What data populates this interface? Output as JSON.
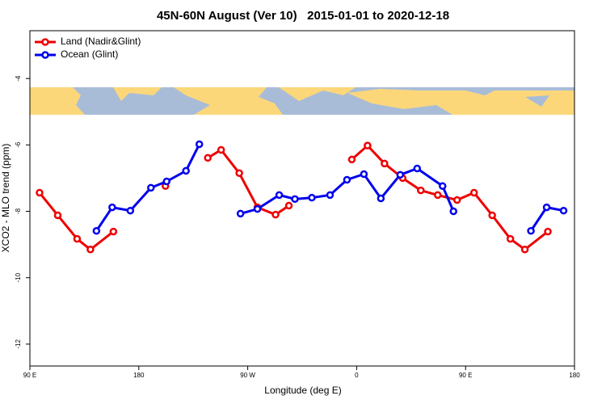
{
  "chart_data": {
    "type": "line",
    "title": "45N-60N August (Ver 10)   2015-01-01 to 2020-12-18",
    "x_label": "Longitude (deg E)",
    "y_label": "XCO2 - MLO trend (ppm)",
    "xlim": [
      90,
      540
    ],
    "ylim": [
      -12.66,
      -2.56
    ],
    "xticks": [
      {
        "value": 90,
        "label": "90 E"
      },
      180,
      {
        "value": 270,
        "label": "90 W"
      },
      {
        "value": 360,
        "label": "0"
      },
      {
        "value": 450,
        "label": "90 E"
      },
      {
        "value": 540,
        "label": "180"
      }
    ],
    "yticks": [
      -4,
      -6,
      -8,
      -10,
      -12
    ],
    "legend": "top-left",
    "series": [
      {
        "name": "Land (Nadir&Glint)",
        "color": "#ee0000",
        "x": [
          98,
          113,
          129,
          140,
          159,
          null,
          202,
          null,
          237,
          248,
          263,
          278,
          293,
          304,
          null,
          356,
          369,
          383,
          398,
          413,
          427,
          443,
          457,
          472,
          487,
          499,
          518
        ],
        "values": [
          -7.44,
          -8.12,
          -8.83,
          -9.15,
          -8.61,
          null,
          -7.24,
          null,
          -6.39,
          -6.15,
          -6.85,
          -7.88,
          -8.1,
          -7.83,
          null,
          -6.44,
          -6.02,
          -6.56,
          -7.0,
          -7.37,
          -7.51,
          -7.66,
          -7.44,
          -8.12,
          -8.83,
          -9.15,
          -8.61
        ]
      },
      {
        "name": "Ocean (Glint)",
        "color": "#0000ee",
        "x": [
          145,
          158,
          173,
          190,
          203,
          219,
          230,
          null,
          264,
          278,
          296,
          309,
          323,
          338,
          352,
          366,
          380,
          396,
          410,
          431,
          440,
          null,
          504,
          517,
          531
        ],
        "values": [
          -8.59,
          -7.88,
          -7.98,
          -7.29,
          -7.1,
          -6.78,
          -5.98,
          null,
          -8.07,
          -7.93,
          -7.51,
          -7.63,
          -7.59,
          -7.51,
          -7.05,
          -6.88,
          -7.61,
          -6.9,
          -6.71,
          -7.24,
          -8.0,
          null,
          -8.59,
          -7.88,
          -7.98
        ]
      }
    ]
  }
}
